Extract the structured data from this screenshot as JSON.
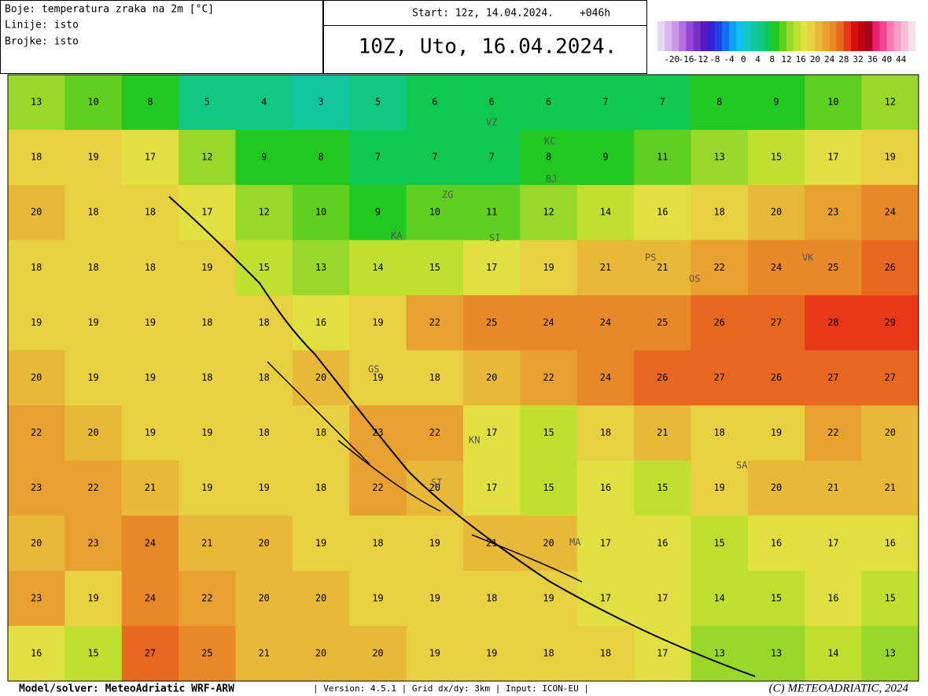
{
  "header": {
    "legend_lines": [
      "Boje: temperatura zraka na 2m [°C]",
      "Linije: isto",
      "Brojke: isto"
    ],
    "start": "Start: 12z, 14.04.2024.",
    "lead": "+046h",
    "title": "10Z, Uto, 16.04.2024."
  },
  "colorbar": {
    "lim": [
      -24,
      48
    ],
    "colors": [
      "#e8d8f8",
      "#d8b8f0",
      "#c898e8",
      "#b070e0",
      "#9848d8",
      "#7830c8",
      "#5818c0",
      "#3820d0",
      "#2040e8",
      "#1070f0",
      "#10a0f8",
      "#10c0f0",
      "#10c8c0",
      "#10c8a0",
      "#10c880",
      "#10c850",
      "#20c820",
      "#60d020",
      "#98d828",
      "#c0e030",
      "#e0e040",
      "#e8d040",
      "#e8b838",
      "#e8a030",
      "#e88828",
      "#e86820",
      "#e83818",
      "#d81010",
      "#c00010",
      "#a80018",
      "#e82070",
      "#f04890",
      "#f878b0",
      "#f8a0c8",
      "#f8c0d8",
      "#f8e0e8"
    ],
    "ticks": [
      -20,
      -16,
      -12,
      -8,
      -4,
      0,
      4,
      8,
      12,
      16,
      20,
      24,
      28,
      32,
      36,
      40,
      44
    ]
  },
  "map": {
    "values": [
      [
        13,
        10,
        8,
        5,
        4,
        3,
        5,
        6,
        6,
        6,
        7,
        7,
        8,
        9,
        10,
        12
      ],
      [
        18,
        19,
        17,
        12,
        9,
        8,
        7,
        7,
        7,
        8,
        9,
        11,
        13,
        15,
        17,
        19
      ],
      [
        20,
        18,
        18,
        17,
        12,
        10,
        9,
        10,
        11,
        12,
        14,
        16,
        18,
        20,
        23,
        24
      ],
      [
        18,
        18,
        18,
        19,
        15,
        13,
        14,
        15,
        17,
        19,
        21,
        21,
        22,
        24,
        25,
        26
      ],
      [
        19,
        19,
        19,
        18,
        18,
        16,
        19,
        22,
        25,
        24,
        24,
        25,
        26,
        27,
        28,
        29
      ],
      [
        20,
        19,
        19,
        18,
        18,
        20,
        19,
        18,
        20,
        22,
        24,
        26,
        27,
        26,
        27,
        27
      ],
      [
        22,
        20,
        19,
        19,
        18,
        18,
        23,
        22,
        17,
        15,
        18,
        21,
        18,
        19,
        22,
        20
      ],
      [
        23,
        22,
        21,
        19,
        19,
        18,
        22,
        20,
        17,
        15,
        16,
        15,
        19,
        20,
        21,
        21
      ],
      [
        20,
        23,
        24,
        21,
        20,
        19,
        18,
        19,
        21,
        20,
        17,
        16,
        15,
        16,
        17,
        16
      ],
      [
        23,
        19,
        24,
        22,
        20,
        20,
        19,
        19,
        18,
        19,
        17,
        17,
        14,
        15,
        16,
        15
      ],
      [
        16,
        15,
        27,
        25,
        21,
        20,
        20,
        19,
        19,
        18,
        18,
        17,
        13,
        13,
        14,
        13
      ]
    ],
    "cities": [
      "VZ",
      "KC",
      "BJ",
      "ZG",
      "KA",
      "SI",
      "PS",
      "OS",
      "VK",
      "GS",
      "KN",
      "ST",
      "SA",
      "MA"
    ]
  },
  "footer": {
    "model": "Model/solver: MeteoAdriatic WRF-ARW",
    "info": "| Version: 4.5.1 | Grid dx/dy: 3km | Input: ICON-EU |",
    "copyright": "(C) METEOADRIATIC, 2024"
  }
}
